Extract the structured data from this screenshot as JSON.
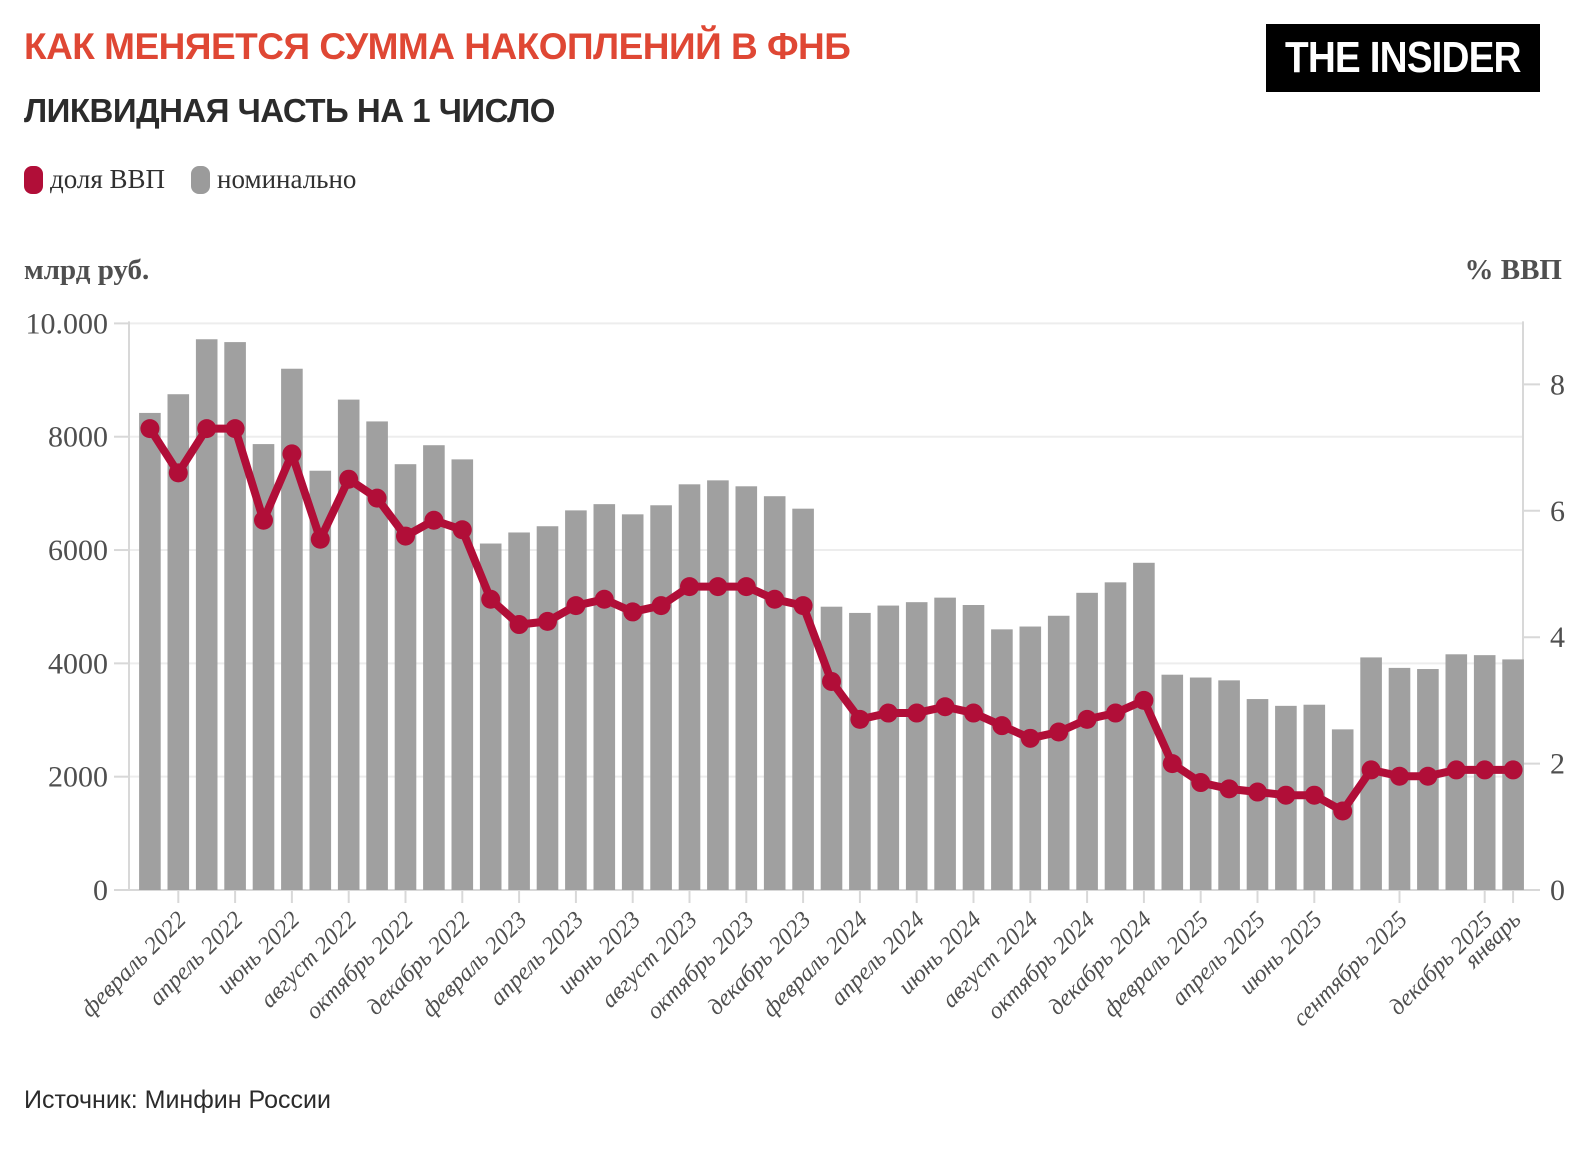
{
  "theme": {
    "accent": "#df4734",
    "dark": "#2b2b2b",
    "bar_color": "#a0a0a0",
    "line_color": "#b10e38",
    "grid_color": "#ededed",
    "axis_line_color": "#d8d8d8",
    "chart_text_color": "#4f4f4f",
    "logo_bg": "#000000",
    "logo_fg": "#ffffff"
  },
  "header": {
    "title": "КАК МЕНЯЕТСЯ СУММА НАКОПЛЕНИЙ В ФНБ",
    "subtitle": "ЛИКВИДНАЯ ЧАСТЬ НА 1 ЧИСЛО",
    "logo": "THE INSIDER"
  },
  "legend": {
    "items": [
      {
        "label": "доля ВВП",
        "color": "#b10e38"
      },
      {
        "label": "номинально",
        "color": "#9b9b9b"
      }
    ]
  },
  "source": "Источник: Минфин России",
  "chart_data": {
    "type": "bar+line",
    "left_axis": {
      "title": "млрд руб.",
      "ylim": [
        0,
        10000
      ],
      "ticks": [
        {
          "v": 10000,
          "label": "10.000"
        },
        {
          "v": 8000,
          "label": "8000"
        },
        {
          "v": 6000,
          "label": "6000"
        },
        {
          "v": 4000,
          "label": "4000"
        },
        {
          "v": 2000,
          "label": "2000"
        },
        {
          "v": 0,
          "label": "0"
        }
      ]
    },
    "right_axis": {
      "title": "% ВВП",
      "ylim": [
        0,
        9
      ],
      "ticks": [
        {
          "v": 8,
          "label": "8"
        },
        {
          "v": 6,
          "label": "6"
        },
        {
          "v": 4,
          "label": "4"
        },
        {
          "v": 2,
          "label": "2"
        },
        {
          "v": 0,
          "label": "0"
        }
      ]
    },
    "x": [
      "янв 2022",
      "фев 2022",
      "мар 2022",
      "апр 2022",
      "май 2022",
      "июн 2022",
      "июл 2022",
      "авг 2022",
      "сен 2022",
      "окт 2022",
      "ноя 2022",
      "дек 2022",
      "янв 2023",
      "фев 2023",
      "мар 2023",
      "апр 2023",
      "май 2023",
      "июн 2023",
      "июл 2023",
      "авг 2023",
      "сен 2023",
      "окт 2023",
      "ноя 2023",
      "дек 2023",
      "янв 2024",
      "фев 2024",
      "мар 2024",
      "апр 2024",
      "май 2024",
      "июн 2024",
      "июл 2024",
      "авг 2024",
      "сен 2024",
      "окт 2024",
      "ноя 2024",
      "дек 2024",
      "янв 2025",
      "фев 2025",
      "мар 2025",
      "апр 2025",
      "май 2025",
      "июн 2025",
      "июл 2025",
      "авг 2025",
      "сен 2025",
      "окт 2025",
      "ноя 2025",
      "дек 2025",
      "янв 2026"
    ],
    "x_tick_labels": [
      {
        "i": 1,
        "label": "февраль 2022"
      },
      {
        "i": 3,
        "label": "апрель 2022"
      },
      {
        "i": 5,
        "label": "июнь 2022"
      },
      {
        "i": 7,
        "label": "август 2022"
      },
      {
        "i": 9,
        "label": "октябрь 2022"
      },
      {
        "i": 11,
        "label": "декабрь 2022"
      },
      {
        "i": 13,
        "label": "февраль 2023"
      },
      {
        "i": 15,
        "label": "апрель 2023"
      },
      {
        "i": 17,
        "label": "июнь 2023"
      },
      {
        "i": 19,
        "label": "август 2023"
      },
      {
        "i": 21,
        "label": "октябрь 2023"
      },
      {
        "i": 23,
        "label": "декабрь 2023"
      },
      {
        "i": 25,
        "label": "февраль 2024"
      },
      {
        "i": 27,
        "label": "апрель 2024"
      },
      {
        "i": 29,
        "label": "июнь 2024"
      },
      {
        "i": 31,
        "label": "август 2024"
      },
      {
        "i": 33,
        "label": "октябрь 2024"
      },
      {
        "i": 35,
        "label": "декабрь 2024"
      },
      {
        "i": 37,
        "label": "февраль 2025"
      },
      {
        "i": 39,
        "label": "апрель 2025"
      },
      {
        "i": 41,
        "label": "июнь 2025"
      },
      {
        "i": 44,
        "label": "сентябрь 2025"
      },
      {
        "i": 47,
        "label": "декабрь 2025"
      },
      {
        "i": 48,
        "label": "январь"
      }
    ],
    "series": [
      {
        "name": "номинально",
        "type": "bar",
        "unit": "млрд руб",
        "axis": "left",
        "values": [
          8420,
          8750,
          9720,
          9670,
          7870,
          9200,
          7400,
          8655,
          8270,
          7515,
          7850,
          7600,
          6115,
          6310,
          6420,
          6700,
          6810,
          6630,
          6790,
          7160,
          7230,
          7125,
          6950,
          6730,
          5000,
          4890,
          5020,
          5080,
          5160,
          5030,
          4600,
          4650,
          4840,
          5245,
          5430,
          5775,
          3800,
          3750,
          3700,
          3370,
          3250,
          3270,
          2835,
          4105,
          3920,
          3900,
          4160,
          4145,
          4070
        ]
      },
      {
        "name": "доля ВВП",
        "type": "line",
        "unit": "% ВВП",
        "axis": "right",
        "values": [
          7.3,
          6.6,
          7.3,
          7.3,
          5.85,
          6.9,
          5.55,
          6.5,
          6.2,
          5.6,
          5.85,
          5.7,
          4.6,
          4.2,
          4.25,
          4.5,
          4.6,
          4.4,
          4.5,
          4.8,
          4.8,
          4.8,
          4.6,
          4.5,
          3.3,
          2.7,
          2.8,
          2.8,
          2.9,
          2.8,
          2.6,
          2.4,
          2.5,
          2.7,
          2.8,
          3.0,
          2.0,
          1.7,
          1.6,
          1.55,
          1.5,
          1.5,
          1.25,
          1.9,
          1.8,
          1.8,
          1.9,
          1.9,
          1.9
        ]
      }
    ],
    "grid": "horizontal-only",
    "legend_position": "top-left"
  }
}
